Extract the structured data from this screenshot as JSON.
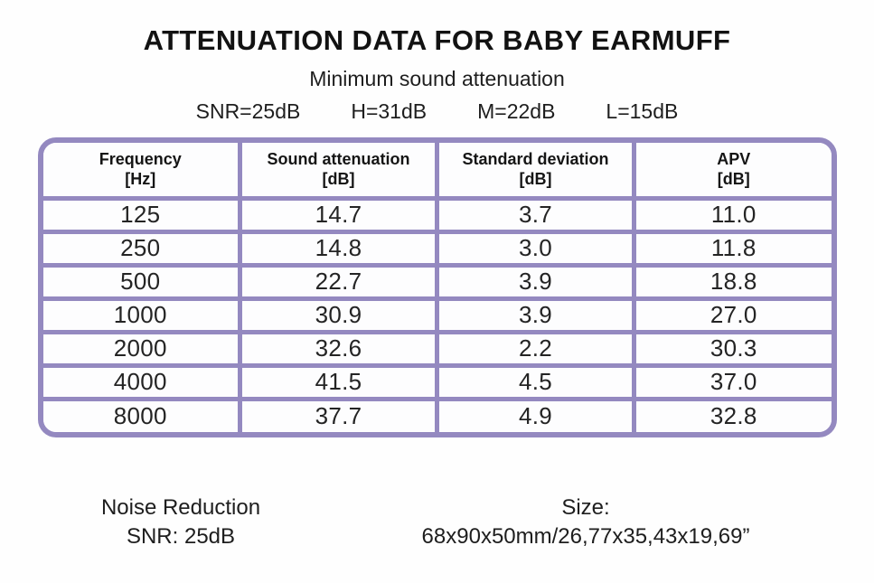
{
  "page": {
    "title": "ATTENUATION DATA FOR BABY EARMUFF",
    "subtitle": "Minimum sound attenuation"
  },
  "summary": {
    "snr": "SNR=25dB",
    "h": "H=31dB",
    "m": "M=22dB",
    "l": "L=15dB"
  },
  "table": {
    "border_color": "#9489c0",
    "columns": [
      {
        "label": "Frequency",
        "unit": "[Hz]"
      },
      {
        "label": "Sound attenuation",
        "unit": "[dB]"
      },
      {
        "label": "Standard deviation",
        "unit": "[dB]"
      },
      {
        "label": "APV",
        "unit": "[dB]"
      }
    ],
    "rows": [
      [
        "125",
        "14.7",
        "3.7",
        "11.0"
      ],
      [
        "250",
        "14.8",
        "3.0",
        "11.8"
      ],
      [
        "500",
        "22.7",
        "3.9",
        "18.8"
      ],
      [
        "1000",
        "30.9",
        "3.9",
        "27.0"
      ],
      [
        "2000",
        "32.6",
        "2.2",
        "30.3"
      ],
      [
        "4000",
        "41.5",
        "4.5",
        "37.0"
      ],
      [
        "8000",
        "37.7",
        "4.9",
        "32.8"
      ]
    ]
  },
  "footer": {
    "noise_reduction_line1": "Noise Reduction",
    "noise_reduction_line2": "SNR: 25dB",
    "size_label": "Size:",
    "size_value": "68x90x50mm/26,77x35,43x19,69”"
  }
}
